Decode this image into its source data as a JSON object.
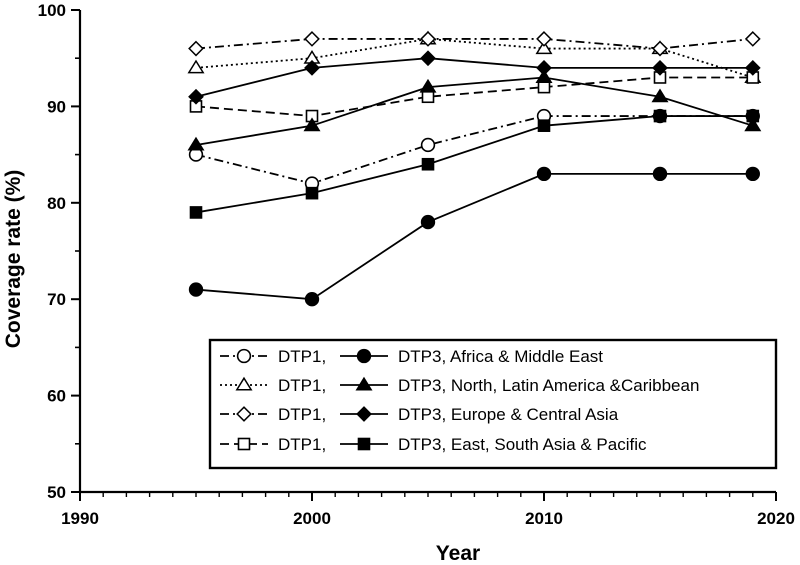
{
  "chart_data": {
    "type": "line",
    "title": "",
    "xlabel": "Year",
    "ylabel": "Coverage rate (%)",
    "xlim": [
      1990,
      2020
    ],
    "ylim": [
      50,
      100
    ],
    "x_ticks": [
      1990,
      2000,
      2010,
      2020
    ],
    "y_ticks": [
      50,
      60,
      70,
      80,
      90,
      100
    ],
    "x": [
      1995,
      2000,
      2005,
      2010,
      2015,
      2019
    ],
    "legend_position": "bottom-right",
    "series": [
      {
        "name": "DTP1,",
        "region": "Africa & Middle East",
        "style": "dashdot",
        "marker": "circle-open",
        "values": [
          85,
          82,
          86,
          89,
          89,
          89
        ]
      },
      {
        "name": "DTP1,",
        "region": "North, Latin America &Caribbean",
        "style": "dotted",
        "marker": "triangle-open",
        "values": [
          94,
          95,
          97,
          96,
          96,
          93
        ]
      },
      {
        "name": "DTP1,",
        "region": "Europe & Central Asia",
        "style": "dashdot",
        "marker": "diamond-open",
        "values": [
          96,
          97,
          97,
          97,
          96,
          97
        ]
      },
      {
        "name": "DTP1,",
        "region": "East, South Asia & Pacific",
        "style": "dashed",
        "marker": "square-open",
        "values": [
          90,
          89,
          91,
          92,
          93,
          93
        ]
      },
      {
        "name": "DTP3, Africa & Middle East",
        "style": "solid",
        "marker": "circle-filled",
        "values": [
          71,
          70,
          78,
          83,
          83,
          83
        ]
      },
      {
        "name": "DTP3, North, Latin America &Caribbean",
        "style": "solid",
        "marker": "triangle-filled",
        "values": [
          86,
          88,
          92,
          93,
          91,
          88
        ]
      },
      {
        "name": "DTP3, Europe & Central Asia",
        "style": "solid",
        "marker": "diamond-filled",
        "values": [
          91,
          94,
          95,
          94,
          94,
          94
        ]
      },
      {
        "name": "DTP3, East, South Asia & Pacific",
        "style": "solid",
        "marker": "square-filled",
        "values": [
          79,
          81,
          84,
          88,
          89,
          89
        ]
      }
    ],
    "legend_order": [
      [
        0,
        4
      ],
      [
        1,
        5
      ],
      [
        2,
        6
      ],
      [
        3,
        7
      ]
    ]
  }
}
